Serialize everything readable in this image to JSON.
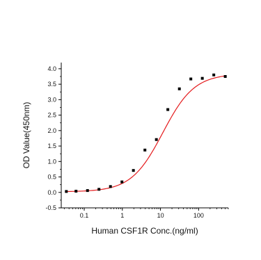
{
  "chart_data": {
    "type": "scatter",
    "xlabel": "Human CSF1R Conc.(ng/ml)",
    "ylabel": "OD Value(450nm)",
    "x_scale": "log",
    "xlim": [
      0.025,
      600
    ],
    "ylim": [
      -0.5,
      4.2
    ],
    "x_ticks": [
      {
        "value": 0.1,
        "label": "0.1"
      },
      {
        "value": 1,
        "label": "1"
      },
      {
        "value": 10,
        "label": "10"
      },
      {
        "value": 100,
        "label": "100"
      }
    ],
    "y_ticks": [
      {
        "value": -0.5,
        "label": "-0.5"
      },
      {
        "value": 0.0,
        "label": "0.0"
      },
      {
        "value": 0.5,
        "label": "0.5"
      },
      {
        "value": 1.0,
        "label": "1.0"
      },
      {
        "value": 1.5,
        "label": "1.5"
      },
      {
        "value": 2.0,
        "label": "2.0"
      },
      {
        "value": 2.5,
        "label": "2.5"
      },
      {
        "value": 3.0,
        "label": "3.0"
      },
      {
        "value": 3.5,
        "label": "3.5"
      },
      {
        "value": 4.0,
        "label": "4.0"
      }
    ],
    "grid": false,
    "legend": "none",
    "series": [
      {
        "kind": "points",
        "marker": "square",
        "color": "#000000",
        "x": [
          0.034,
          0.061,
          0.122,
          0.244,
          0.488,
          0.977,
          1.95,
          3.91,
          7.81,
          15.6,
          31.3,
          62.5,
          125,
          250,
          500
        ],
        "y": [
          0.03,
          0.04,
          0.06,
          0.1,
          0.19,
          0.34,
          0.71,
          1.37,
          1.71,
          2.68,
          3.35,
          3.67,
          3.69,
          3.8,
          3.75
        ]
      },
      {
        "kind": "fit-curve",
        "color": "#e41a1c",
        "model": "4PL",
        "bottom": 0.02,
        "top": 3.84,
        "ec50": 11.5,
        "hill": 1.05
      }
    ]
  }
}
